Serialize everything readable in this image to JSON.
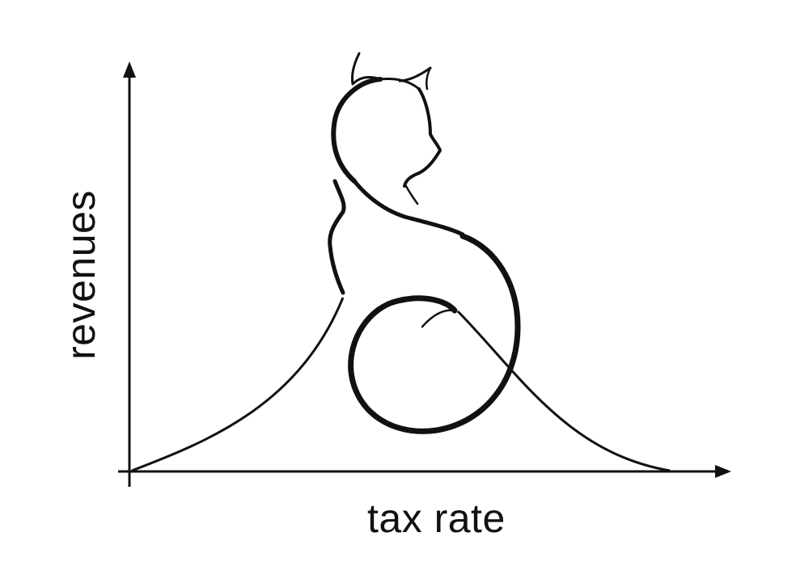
{
  "diagram": {
    "xlabel": "tax rate",
    "ylabel": "revenues",
    "shape": "laffer-curve-with-cat-silhouette"
  },
  "colors": {
    "ink": "#111111",
    "background": "#ffffff"
  }
}
